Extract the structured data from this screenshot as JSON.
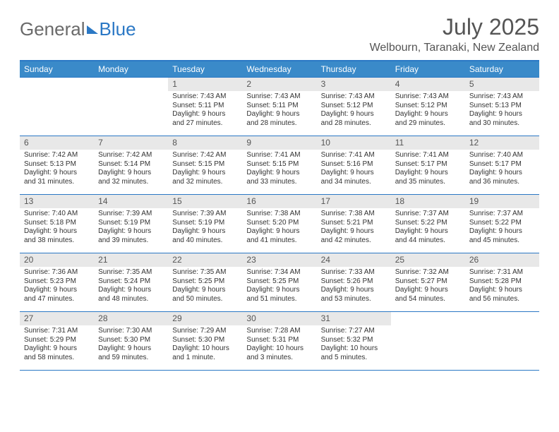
{
  "logo": {
    "text1": "General",
    "text2": "Blue"
  },
  "title": "July 2025",
  "location": "Welbourn, Taranaki, New Zealand",
  "colors": {
    "header_blue": "#3a8ac9",
    "border_blue": "#2b78c5",
    "daynum_bg": "#e8e8e8",
    "text": "#333333"
  },
  "dow": [
    "Sunday",
    "Monday",
    "Tuesday",
    "Wednesday",
    "Thursday",
    "Friday",
    "Saturday"
  ],
  "weeks": [
    [
      null,
      null,
      {
        "n": "1",
        "sr": "Sunrise: 7:43 AM",
        "ss": "Sunset: 5:11 PM",
        "d1": "Daylight: 9 hours",
        "d2": "and 27 minutes."
      },
      {
        "n": "2",
        "sr": "Sunrise: 7:43 AM",
        "ss": "Sunset: 5:11 PM",
        "d1": "Daylight: 9 hours",
        "d2": "and 28 minutes."
      },
      {
        "n": "3",
        "sr": "Sunrise: 7:43 AM",
        "ss": "Sunset: 5:12 PM",
        "d1": "Daylight: 9 hours",
        "d2": "and 28 minutes."
      },
      {
        "n": "4",
        "sr": "Sunrise: 7:43 AM",
        "ss": "Sunset: 5:12 PM",
        "d1": "Daylight: 9 hours",
        "d2": "and 29 minutes."
      },
      {
        "n": "5",
        "sr": "Sunrise: 7:43 AM",
        "ss": "Sunset: 5:13 PM",
        "d1": "Daylight: 9 hours",
        "d2": "and 30 minutes."
      }
    ],
    [
      {
        "n": "6",
        "sr": "Sunrise: 7:42 AM",
        "ss": "Sunset: 5:13 PM",
        "d1": "Daylight: 9 hours",
        "d2": "and 31 minutes."
      },
      {
        "n": "7",
        "sr": "Sunrise: 7:42 AM",
        "ss": "Sunset: 5:14 PM",
        "d1": "Daylight: 9 hours",
        "d2": "and 32 minutes."
      },
      {
        "n": "8",
        "sr": "Sunrise: 7:42 AM",
        "ss": "Sunset: 5:15 PM",
        "d1": "Daylight: 9 hours",
        "d2": "and 32 minutes."
      },
      {
        "n": "9",
        "sr": "Sunrise: 7:41 AM",
        "ss": "Sunset: 5:15 PM",
        "d1": "Daylight: 9 hours",
        "d2": "and 33 minutes."
      },
      {
        "n": "10",
        "sr": "Sunrise: 7:41 AM",
        "ss": "Sunset: 5:16 PM",
        "d1": "Daylight: 9 hours",
        "d2": "and 34 minutes."
      },
      {
        "n": "11",
        "sr": "Sunrise: 7:41 AM",
        "ss": "Sunset: 5:17 PM",
        "d1": "Daylight: 9 hours",
        "d2": "and 35 minutes."
      },
      {
        "n": "12",
        "sr": "Sunrise: 7:40 AM",
        "ss": "Sunset: 5:17 PM",
        "d1": "Daylight: 9 hours",
        "d2": "and 36 minutes."
      }
    ],
    [
      {
        "n": "13",
        "sr": "Sunrise: 7:40 AM",
        "ss": "Sunset: 5:18 PM",
        "d1": "Daylight: 9 hours",
        "d2": "and 38 minutes."
      },
      {
        "n": "14",
        "sr": "Sunrise: 7:39 AM",
        "ss": "Sunset: 5:19 PM",
        "d1": "Daylight: 9 hours",
        "d2": "and 39 minutes."
      },
      {
        "n": "15",
        "sr": "Sunrise: 7:39 AM",
        "ss": "Sunset: 5:19 PM",
        "d1": "Daylight: 9 hours",
        "d2": "and 40 minutes."
      },
      {
        "n": "16",
        "sr": "Sunrise: 7:38 AM",
        "ss": "Sunset: 5:20 PM",
        "d1": "Daylight: 9 hours",
        "d2": "and 41 minutes."
      },
      {
        "n": "17",
        "sr": "Sunrise: 7:38 AM",
        "ss": "Sunset: 5:21 PM",
        "d1": "Daylight: 9 hours",
        "d2": "and 42 minutes."
      },
      {
        "n": "18",
        "sr": "Sunrise: 7:37 AM",
        "ss": "Sunset: 5:22 PM",
        "d1": "Daylight: 9 hours",
        "d2": "and 44 minutes."
      },
      {
        "n": "19",
        "sr": "Sunrise: 7:37 AM",
        "ss": "Sunset: 5:22 PM",
        "d1": "Daylight: 9 hours",
        "d2": "and 45 minutes."
      }
    ],
    [
      {
        "n": "20",
        "sr": "Sunrise: 7:36 AM",
        "ss": "Sunset: 5:23 PM",
        "d1": "Daylight: 9 hours",
        "d2": "and 47 minutes."
      },
      {
        "n": "21",
        "sr": "Sunrise: 7:35 AM",
        "ss": "Sunset: 5:24 PM",
        "d1": "Daylight: 9 hours",
        "d2": "and 48 minutes."
      },
      {
        "n": "22",
        "sr": "Sunrise: 7:35 AM",
        "ss": "Sunset: 5:25 PM",
        "d1": "Daylight: 9 hours",
        "d2": "and 50 minutes."
      },
      {
        "n": "23",
        "sr": "Sunrise: 7:34 AM",
        "ss": "Sunset: 5:25 PM",
        "d1": "Daylight: 9 hours",
        "d2": "and 51 minutes."
      },
      {
        "n": "24",
        "sr": "Sunrise: 7:33 AM",
        "ss": "Sunset: 5:26 PM",
        "d1": "Daylight: 9 hours",
        "d2": "and 53 minutes."
      },
      {
        "n": "25",
        "sr": "Sunrise: 7:32 AM",
        "ss": "Sunset: 5:27 PM",
        "d1": "Daylight: 9 hours",
        "d2": "and 54 minutes."
      },
      {
        "n": "26",
        "sr": "Sunrise: 7:31 AM",
        "ss": "Sunset: 5:28 PM",
        "d1": "Daylight: 9 hours",
        "d2": "and 56 minutes."
      }
    ],
    [
      {
        "n": "27",
        "sr": "Sunrise: 7:31 AM",
        "ss": "Sunset: 5:29 PM",
        "d1": "Daylight: 9 hours",
        "d2": "and 58 minutes."
      },
      {
        "n": "28",
        "sr": "Sunrise: 7:30 AM",
        "ss": "Sunset: 5:30 PM",
        "d1": "Daylight: 9 hours",
        "d2": "and 59 minutes."
      },
      {
        "n": "29",
        "sr": "Sunrise: 7:29 AM",
        "ss": "Sunset: 5:30 PM",
        "d1": "Daylight: 10 hours",
        "d2": "and 1 minute."
      },
      {
        "n": "30",
        "sr": "Sunrise: 7:28 AM",
        "ss": "Sunset: 5:31 PM",
        "d1": "Daylight: 10 hours",
        "d2": "and 3 minutes."
      },
      {
        "n": "31",
        "sr": "Sunrise: 7:27 AM",
        "ss": "Sunset: 5:32 PM",
        "d1": "Daylight: 10 hours",
        "d2": "and 5 minutes."
      },
      null,
      null
    ]
  ]
}
